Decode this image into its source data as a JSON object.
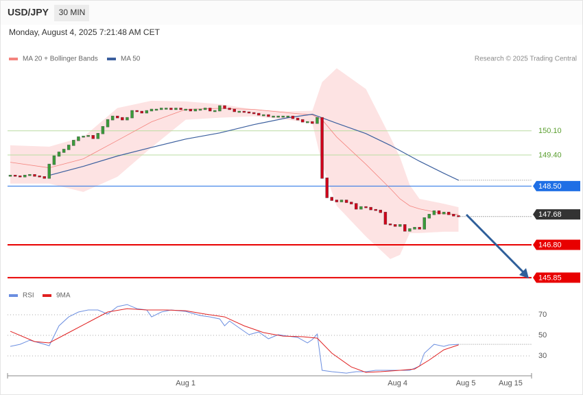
{
  "chart_data": [
    {
      "type": "candlestick",
      "title": "USD/JPY",
      "interval": "30 MIN",
      "subtitle": "Monday, August 4, 2025 7:21:48 AM CET",
      "credit": "Research © 2025 Trading Central",
      "xlim": [
        -0.56,
        107
      ],
      "ylim": [
        145.55,
        152.0
      ],
      "up_color": "#3a9b3a",
      "down_color": "#d0021b",
      "close": [
        148.81,
        148.79,
        148.77,
        148.81,
        148.83,
        148.79,
        148.77,
        148.73,
        149.13,
        149.37,
        149.48,
        149.56,
        149.68,
        149.82,
        149.92,
        149.94,
        149.96,
        149.88,
        150.02,
        150.22,
        150.42,
        150.52,
        150.48,
        150.42,
        150.48,
        150.68,
        150.66,
        150.62,
        150.68,
        150.72,
        150.72,
        150.75,
        150.75,
        150.72,
        150.75,
        150.72,
        150.72,
        150.68,
        150.72,
        150.72,
        150.75,
        150.68,
        150.68,
        150.82,
        150.75,
        150.72,
        150.66,
        150.66,
        150.64,
        150.62,
        150.6,
        150.56,
        150.56,
        150.52,
        150.52,
        150.52,
        150.52,
        150.52,
        150.46,
        150.42,
        150.36,
        150.36,
        150.32,
        150.48,
        148.73,
        148.17,
        148.09,
        148.05,
        148.09,
        148.03,
        147.99,
        147.84,
        147.9,
        147.88,
        147.82,
        147.8,
        147.74,
        147.4,
        147.38,
        147.34,
        147.38,
        147.2,
        147.26,
        147.3,
        147.26,
        147.58,
        147.68,
        147.78,
        147.7,
        147.74,
        147.68,
        147.64,
        147.62
      ],
      "series": [
        {
          "name": "MA 20 + Bollinger Bands",
          "color": "#f4837d",
          "band_color": "#fde3e3",
          "x": [
            0,
            8,
            15,
            22,
            29,
            36,
            43,
            50,
            57,
            62,
            64,
            67,
            73,
            78,
            80,
            82,
            84,
            89,
            92
          ],
          "values": [
            149.19,
            149.03,
            149.29,
            149.82,
            150.36,
            150.72,
            150.75,
            150.72,
            150.62,
            150.56,
            150.42,
            149.92,
            149.13,
            148.43,
            148.13,
            147.93,
            147.84,
            147.7,
            147.68
          ],
          "upper": [
            149.68,
            149.64,
            149.92,
            150.76,
            150.97,
            150.95,
            150.87,
            150.72,
            150.66,
            150.68,
            151.51,
            151.91,
            151.31,
            149.92,
            149.33,
            148.53,
            148.13,
            147.99,
            147.89
          ],
          "lower": [
            148.57,
            148.57,
            148.33,
            148.77,
            149.62,
            150.42,
            150.48,
            150.52,
            150.42,
            150.32,
            149.13,
            147.93,
            147.04,
            146.39,
            146.51,
            147.14,
            147.14,
            147.18,
            147.18
          ]
        },
        {
          "name": "MA 50",
          "color": "#3b5f9e",
          "x": [
            8,
            15,
            22,
            29,
            36,
            43,
            50,
            57,
            62,
            67,
            73,
            78,
            84,
            89,
            92
          ],
          "values": [
            148.81,
            149.07,
            149.37,
            149.62,
            149.86,
            150.04,
            150.28,
            150.48,
            150.58,
            150.32,
            150.02,
            149.68,
            149.22,
            148.87,
            148.67
          ]
        }
      ],
      "levels": [
        {
          "value": 150.1,
          "label": "150.10",
          "color": "#5a9e2f",
          "line": "thin",
          "tag": false
        },
        {
          "value": 149.4,
          "label": "149.40",
          "color": "#5a9e2f",
          "line": "thin",
          "tag": false
        },
        {
          "value": 148.5,
          "label": "148.50",
          "color": "#1f6fe5",
          "line": "thin",
          "tag": true
        },
        {
          "value": 147.68,
          "label": "147.68",
          "color": "#333333",
          "line": "none",
          "tag": true
        },
        {
          "value": 146.8,
          "label": "146.80",
          "color": "#e80000",
          "line": "thick",
          "tag": true
        },
        {
          "value": 145.85,
          "label": "145.85",
          "color": "#e80000",
          "line": "thick",
          "tag": true
        }
      ]
    },
    {
      "type": "line",
      "xlim": [
        -0.56,
        107
      ],
      "ylim": [
        12.7,
        82.7
      ],
      "yticks": [
        30,
        50,
        70
      ],
      "grid": true,
      "xticks": [
        {
          "value": 36,
          "label": "Aug 1"
        },
        {
          "value": 79.5,
          "label": "Aug 4"
        },
        {
          "value": 93.5,
          "label": "Aug 5"
        },
        {
          "value": 102.7,
          "label": "Aug 15"
        }
      ],
      "series": [
        {
          "name": "RSI",
          "color": "#6b8ee0",
          "x": [
            0,
            2,
            4,
            6,
            8,
            10,
            12,
            14,
            16,
            18,
            20,
            22,
            24,
            26,
            28,
            29,
            31,
            33,
            36,
            39,
            41,
            43,
            44,
            45,
            47,
            49,
            51,
            53,
            55,
            57,
            59,
            61,
            62,
            63,
            64,
            66,
            69,
            71,
            73,
            75,
            78,
            80,
            82,
            84,
            85,
            87,
            89,
            90,
            92
          ],
          "values": [
            39.3,
            41.3,
            45.3,
            42.7,
            40,
            59.3,
            68,
            72.7,
            74.7,
            74.7,
            70.7,
            78,
            80,
            76,
            74.7,
            68,
            72.7,
            74.7,
            73.3,
            69.3,
            68,
            66,
            59.3,
            64,
            57.3,
            50.7,
            53.3,
            46.7,
            50.7,
            49.3,
            48,
            42.7,
            46,
            51.3,
            16,
            14.7,
            13.3,
            14.7,
            14.7,
            16,
            16,
            16,
            16,
            20,
            32.7,
            41.3,
            39.3,
            40.7,
            41.3
          ]
        },
        {
          "name": "9MA",
          "color": "#e02020",
          "x": [
            0,
            5,
            8,
            12,
            16,
            20,
            24,
            28,
            32,
            36,
            40,
            44,
            48,
            52,
            56,
            60,
            63,
            66,
            70,
            73,
            76,
            80,
            83,
            86,
            89,
            92
          ],
          "values": [
            54,
            44,
            42.7,
            52.7,
            62.7,
            72.7,
            76,
            74.7,
            74.7,
            74,
            70.7,
            68,
            59.3,
            52.7,
            49.3,
            48.7,
            47.3,
            32.7,
            19.3,
            14,
            14.7,
            16,
            17.3,
            26,
            36,
            40.7
          ]
        }
      ]
    }
  ]
}
